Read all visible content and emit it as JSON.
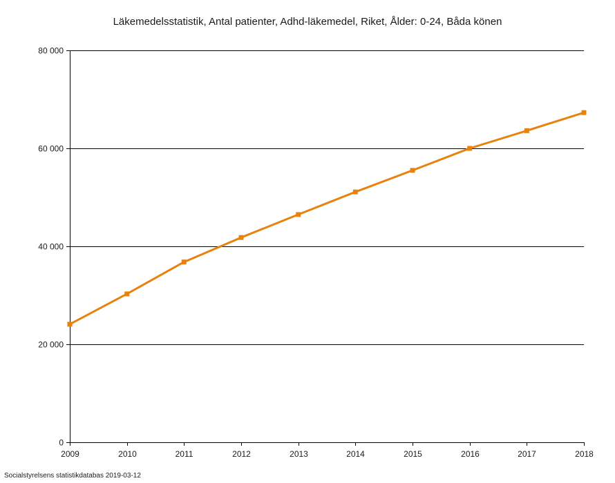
{
  "chart_data": {
    "type": "line",
    "title": "Läkemedelsstatistik, Antal patienter, Adhd-läkemedel, Riket, Ålder: 0-24, Båda könen",
    "xlabel": "",
    "ylabel": "",
    "x": [
      "2009",
      "2010",
      "2011",
      "2012",
      "2013",
      "2014",
      "2015",
      "2016",
      "2017",
      "2018"
    ],
    "series": [
      {
        "values": [
          24100,
          30300,
          36800,
          41800,
          46500,
          51100,
          55500,
          60000,
          63600,
          67300
        ],
        "color": "#e8820c"
      }
    ],
    "ylim": [
      0,
      80000
    ],
    "yticks": [
      0,
      20000,
      40000,
      60000,
      80000
    ],
    "ytick_labels": [
      "0",
      "20 000",
      "40 000",
      "60 000",
      "80 000"
    ],
    "grid": "horizontal",
    "legend": "none"
  },
  "footer": {
    "source": "Socialstyrelsens statistikdatabas 2019-03-12"
  }
}
